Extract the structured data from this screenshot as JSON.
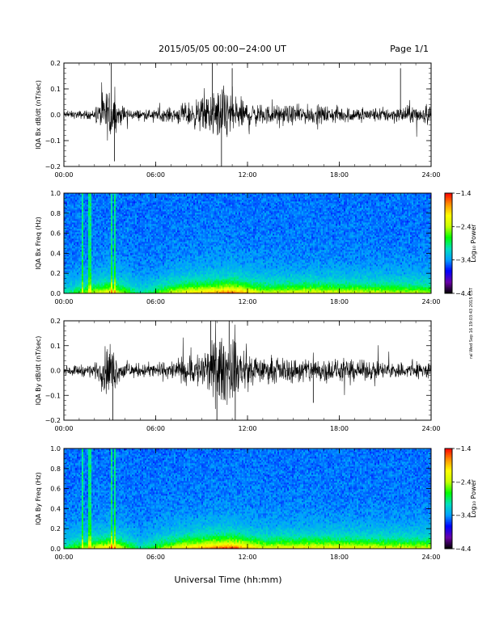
{
  "header": {
    "title": "2015/05/05  00:00−24:00 UT",
    "page": "Page 1/1"
  },
  "side_stamp": "ral Wed Sep 16 19:03:43 2015 CST",
  "footer": {
    "xlabel": "Universal Time (hh:mm)"
  },
  "colors": {
    "trace": "#000000",
    "colormap": [
      "#000000",
      "#6a00a8",
      "#0000ff",
      "#00a0ff",
      "#00e0c0",
      "#00ff00",
      "#c8ff00",
      "#ffff00",
      "#ff9000",
      "#ff0000"
    ]
  },
  "chart_data": [
    {
      "type": "line",
      "ylabel": "IQA Bx dB/dt (nT/sec)",
      "x_ticks": [
        "00:00",
        "06:00",
        "12:00",
        "18:00",
        "24:00"
      ],
      "xlim": [
        0,
        24
      ],
      "ylim": [
        -0.2,
        0.2
      ],
      "y_ticks": [
        "0.2",
        "0.1",
        "0.0",
        "−0.1",
        "−0.2"
      ],
      "activity": [
        {
          "x": 0,
          "amp": 0.015
        },
        {
          "x": 2,
          "amp": 0.02
        },
        {
          "x": 3,
          "amp": 0.12
        },
        {
          "x": 3.6,
          "amp": 0.05
        },
        {
          "x": 4.5,
          "amp": 0.02
        },
        {
          "x": 7,
          "amp": 0.03
        },
        {
          "x": 9,
          "amp": 0.07
        },
        {
          "x": 10.5,
          "amp": 0.13
        },
        {
          "x": 11.5,
          "amp": 0.07
        },
        {
          "x": 13,
          "amp": 0.04
        },
        {
          "x": 16,
          "amp": 0.04
        },
        {
          "x": 20,
          "amp": 0.03
        },
        {
          "x": 24,
          "amp": 0.04
        }
      ],
      "spikes": [
        {
          "x": 3.1,
          "y": 0.2
        },
        {
          "x": 3.3,
          "y": -0.18
        },
        {
          "x": 9.7,
          "y": 0.2
        },
        {
          "x": 10.3,
          "y": -0.2
        },
        {
          "x": 11.0,
          "y": 0.18
        },
        {
          "x": 22.0,
          "y": 0.18
        }
      ]
    },
    {
      "type": "heatmap",
      "ylabel": "IQA Bx Freq (Hz)",
      "x_ticks": [
        "00:00",
        "06:00",
        "12:00",
        "18:00",
        "24:00"
      ],
      "xlim": [
        0,
        24
      ],
      "ylim": [
        0,
        1.0
      ],
      "y_ticks": [
        "1.0",
        "0.8",
        "0.6",
        "0.4",
        "0.2",
        "0.0"
      ],
      "colorbar": {
        "label": "Log₁₀ Power",
        "ticks": [
          "−1.4",
          "−2.4",
          "−3.4",
          "−4.4"
        ],
        "range": [
          -4.4,
          -1.4
        ]
      },
      "low_freq_enhancement": [
        {
          "x": 0,
          "level": 0.2
        },
        {
          "x": 3,
          "level": 0.6
        },
        {
          "x": 5,
          "level": 0.2
        },
        {
          "x": 8,
          "level": 0.6
        },
        {
          "x": 11,
          "level": 0.8
        },
        {
          "x": 13,
          "level": 0.5
        },
        {
          "x": 16,
          "level": 0.55
        },
        {
          "x": 24,
          "level": 0.45
        }
      ],
      "vertical_bands": [
        1.2,
        1.7,
        3.1,
        3.3
      ]
    },
    {
      "type": "line",
      "ylabel": "IQA By dB/dt (nT/sec)",
      "x_ticks": [
        "00:00",
        "06:00",
        "12:00",
        "18:00",
        "24:00"
      ],
      "xlim": [
        0,
        24
      ],
      "ylim": [
        -0.2,
        0.2
      ],
      "y_ticks": [
        "0.2",
        "0.1",
        "0.0",
        "−0.1",
        "−0.2"
      ],
      "activity": [
        {
          "x": 0,
          "amp": 0.02
        },
        {
          "x": 2,
          "amp": 0.03
        },
        {
          "x": 3,
          "amp": 0.13
        },
        {
          "x": 3.6,
          "amp": 0.05
        },
        {
          "x": 4.5,
          "amp": 0.03
        },
        {
          "x": 7,
          "amp": 0.04
        },
        {
          "x": 9,
          "amp": 0.09
        },
        {
          "x": 10.5,
          "amp": 0.16
        },
        {
          "x": 11.5,
          "amp": 0.11
        },
        {
          "x": 13,
          "amp": 0.05
        },
        {
          "x": 16,
          "amp": 0.06
        },
        {
          "x": 20,
          "amp": 0.04
        },
        {
          "x": 24,
          "amp": 0.04
        }
      ],
      "spikes": [
        {
          "x": 3.2,
          "y": -0.2
        },
        {
          "x": 9.6,
          "y": 0.2
        },
        {
          "x": 10.0,
          "y": -0.2
        },
        {
          "x": 10.8,
          "y": 0.2
        },
        {
          "x": 11.2,
          "y": -0.2
        },
        {
          "x": 16.3,
          "y": -0.13
        }
      ]
    },
    {
      "type": "heatmap",
      "ylabel": "IQA By Freq (Hz)",
      "x_ticks": [
        "00:00",
        "06:00",
        "12:00",
        "18:00",
        "24:00"
      ],
      "xlim": [
        0,
        24
      ],
      "ylim": [
        0,
        1.0
      ],
      "y_ticks": [
        "1.0",
        "0.8",
        "0.6",
        "0.4",
        "0.2",
        "0.0"
      ],
      "colorbar": {
        "label": "Log₁₀ Power",
        "ticks": [
          "−1.4",
          "−2.4",
          "−3.4",
          "−4.4"
        ],
        "range": [
          -4.4,
          -1.4
        ]
      },
      "low_freq_enhancement": [
        {
          "x": 0,
          "level": 0.25
        },
        {
          "x": 3,
          "level": 0.65
        },
        {
          "x": 5,
          "level": 0.2
        },
        {
          "x": 8,
          "level": 0.65
        },
        {
          "x": 11,
          "level": 0.85
        },
        {
          "x": 13,
          "level": 0.55
        },
        {
          "x": 16,
          "level": 0.6
        },
        {
          "x": 24,
          "level": 0.5
        }
      ],
      "vertical_bands": [
        1.2,
        1.7,
        3.1,
        3.3
      ]
    }
  ]
}
